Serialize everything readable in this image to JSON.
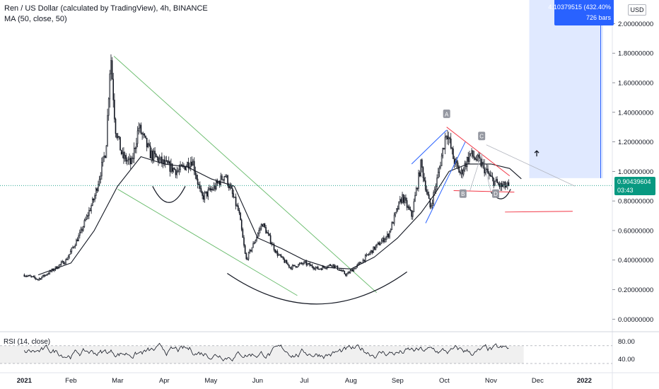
{
  "header": {
    "title": "Ren / US Dollar (calculated by TradingView), 4h, BINANCE",
    "indicator": "MA (50, close, 50)",
    "currency_button": "USD"
  },
  "range_box": {
    "value": "4.10379515 (432.40%",
    "bars": "726 bars"
  },
  "last_price": {
    "value": "0.90439604",
    "countdown": "03:43"
  },
  "rsi_pane": {
    "label": "RSI (14, close)",
    "ticks": [
      "80.00",
      "40.00"
    ]
  },
  "pattern_labels": [
    "A",
    "B",
    "C",
    "D"
  ],
  "colors": {
    "candle": "#131722",
    "ma": "#131722",
    "green_trend": "#4caf50",
    "blue_trend": "#2962ff",
    "red_trend": "#f23645",
    "projection_fill": "#dbe5ff",
    "last_price": "#089981",
    "grid": "#e0e3eb"
  },
  "chart_data": [
    {
      "type": "candlestick",
      "title": "Ren / US Dollar (calculated by TradingView), 4h, BINANCE",
      "y_axis_ticks": [
        "2.00000000",
        "1.80000000",
        "1.60000000",
        "1.40000000",
        "1.20000000",
        "1.00000000",
        "0.80000000",
        "0.60000000",
        "0.40000000",
        "0.20000000",
        "0.00000000"
      ],
      "ylim": [
        -0.08,
        2.16
      ],
      "x_axis_ticks": [
        "2021",
        "Feb",
        "Mar",
        "Apr",
        "May",
        "Jun",
        "Jul",
        "Aug",
        "Sep",
        "Oct",
        "Nov",
        "Dec",
        "2022"
      ],
      "x_tick_values": [
        0,
        1,
        2,
        3,
        4,
        5,
        6,
        7,
        8,
        9,
        10,
        11,
        12
      ],
      "xlim": [
        -0.52,
        12.6
      ],
      "price_path": [
        {
          "t": 0.0,
          "p": 0.3
        },
        {
          "t": 0.3,
          "p": 0.27
        },
        {
          "t": 0.6,
          "p": 0.33
        },
        {
          "t": 0.9,
          "p": 0.4
        },
        {
          "t": 1.2,
          "p": 0.58
        },
        {
          "t": 1.5,
          "p": 0.82
        },
        {
          "t": 1.75,
          "p": 1.15
        },
        {
          "t": 1.85,
          "p": 1.8
        },
        {
          "t": 1.95,
          "p": 1.3
        },
        {
          "t": 2.1,
          "p": 1.1
        },
        {
          "t": 2.3,
          "p": 1.05
        },
        {
          "t": 2.45,
          "p": 1.3
        },
        {
          "t": 2.7,
          "p": 1.12
        },
        {
          "t": 3.0,
          "p": 1.05
        },
        {
          "t": 3.3,
          "p": 1.0
        },
        {
          "t": 3.6,
          "p": 1.08
        },
        {
          "t": 3.8,
          "p": 0.82
        },
        {
          "t": 4.1,
          "p": 0.9
        },
        {
          "t": 4.3,
          "p": 0.98
        },
        {
          "t": 4.6,
          "p": 0.72
        },
        {
          "t": 4.75,
          "p": 0.4
        },
        {
          "t": 4.9,
          "p": 0.5
        },
        {
          "t": 5.1,
          "p": 0.65
        },
        {
          "t": 5.4,
          "p": 0.45
        },
        {
          "t": 5.7,
          "p": 0.35
        },
        {
          "t": 6.0,
          "p": 0.38
        },
        {
          "t": 6.3,
          "p": 0.34
        },
        {
          "t": 6.6,
          "p": 0.37
        },
        {
          "t": 6.9,
          "p": 0.3
        },
        {
          "t": 7.2,
          "p": 0.38
        },
        {
          "t": 7.5,
          "p": 0.48
        },
        {
          "t": 7.8,
          "p": 0.57
        },
        {
          "t": 8.0,
          "p": 0.75
        },
        {
          "t": 8.1,
          "p": 0.83
        },
        {
          "t": 8.3,
          "p": 0.7
        },
        {
          "t": 8.5,
          "p": 1.05
        },
        {
          "t": 8.7,
          "p": 0.75
        },
        {
          "t": 8.85,
          "p": 0.95
        },
        {
          "t": 9.05,
          "p": 1.28
        },
        {
          "t": 9.2,
          "p": 1.08
        },
        {
          "t": 9.35,
          "p": 0.98
        },
        {
          "t": 9.55,
          "p": 1.12
        },
        {
          "t": 9.8,
          "p": 1.05
        },
        {
          "t": 10.0,
          "p": 0.95
        },
        {
          "t": 10.2,
          "p": 0.9
        },
        {
          "t": 10.38,
          "p": 0.9
        }
      ],
      "ma_line": [
        {
          "t": 0.3,
          "p": 0.3
        },
        {
          "t": 1.0,
          "p": 0.38
        },
        {
          "t": 1.5,
          "p": 0.6
        },
        {
          "t": 2.0,
          "p": 0.9
        },
        {
          "t": 2.5,
          "p": 1.1
        },
        {
          "t": 3.0,
          "p": 1.05
        },
        {
          "t": 3.5,
          "p": 1.03
        },
        {
          "t": 4.0,
          "p": 0.95
        },
        {
          "t": 4.5,
          "p": 0.9
        },
        {
          "t": 5.0,
          "p": 0.55
        },
        {
          "t": 5.5,
          "p": 0.48
        },
        {
          "t": 6.0,
          "p": 0.4
        },
        {
          "t": 6.5,
          "p": 0.35
        },
        {
          "t": 7.0,
          "p": 0.34
        },
        {
          "t": 7.5,
          "p": 0.42
        },
        {
          "t": 8.0,
          "p": 0.55
        },
        {
          "t": 8.5,
          "p": 0.72
        },
        {
          "t": 8.8,
          "p": 0.85
        },
        {
          "t": 9.1,
          "p": 1.0
        },
        {
          "t": 9.5,
          "p": 1.05
        },
        {
          "t": 10.0,
          "p": 1.05
        },
        {
          "t": 10.4,
          "p": 1.02
        },
        {
          "t": 10.65,
          "p": 0.95
        }
      ],
      "last_price": 0.90439604
    },
    {
      "type": "line",
      "title": "RSI (14, close)",
      "y_axis_ticks": [
        "80.00",
        "40.00"
      ],
      "y_tick_values": [
        80,
        40
      ],
      "ylim": [
        14,
        100
      ],
      "band": [
        70,
        30
      ],
      "xlim": [
        -0.52,
        12.6
      ]
    }
  ]
}
